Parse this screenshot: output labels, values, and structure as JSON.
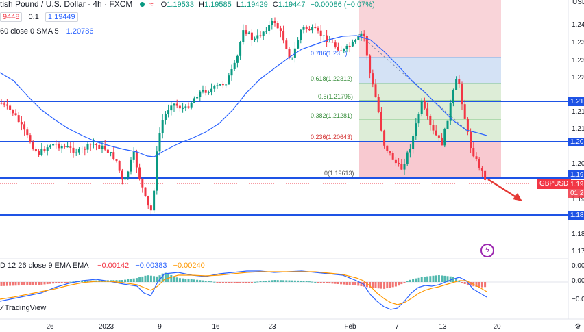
{
  "header": {
    "title": "tish Pound / U.S. Dollar · 4h · FXCM",
    "open_label": "O",
    "open": "1.19533",
    "high_label": "H",
    "high": "1.19585",
    "low_label": "L",
    "low": "1.19429",
    "close_label": "C",
    "close": "1.19447",
    "change": "−0.00086 (−0.07%)",
    "sell_price": "9448",
    "spread": "0.1",
    "buy_price": "1.19449",
    "sma_label": "60 close 0 SMA 5",
    "sma_value": "1.20786"
  },
  "macd": {
    "label": "D 12 26 close 9 EMA EMA",
    "hist": "−0.00142",
    "macd": "−0.00383",
    "signal": "−0.00240"
  },
  "fib": [
    "0.786(1.23...)",
    "0.618(1.22312)",
    "0.5(1.21796)",
    "0.382(1.21281)",
    "0.236(1.20643)",
    "0(1.19613)"
  ],
  "price_axis": {
    "currency": "USD",
    "ticks": [
      "1.24",
      "1.23",
      "1.23",
      "1.22",
      "1.21",
      "1.21",
      "1.20",
      "1.20",
      "1.19",
      "1.18",
      "1.17"
    ],
    "tags": [
      "1.21",
      "1.20",
      "1.19",
      "1.18"
    ],
    "symbol": "GBPUSD",
    "last_price": "1.19",
    "countdown": "01:2"
  },
  "macd_axis": [
    "0.00",
    "0.00",
    "−0.00"
  ],
  "x_axis": [
    "26",
    "2023",
    "9",
    "16",
    "23",
    "Feb",
    "7",
    "13",
    "20"
  ],
  "brand": "TradingView",
  "colors": {
    "up": "#089981",
    "down": "#f23645",
    "sma": "#2962ff",
    "level": "#1e53e5",
    "signal": "#ff9800",
    "arrow": "#e53935"
  }
}
